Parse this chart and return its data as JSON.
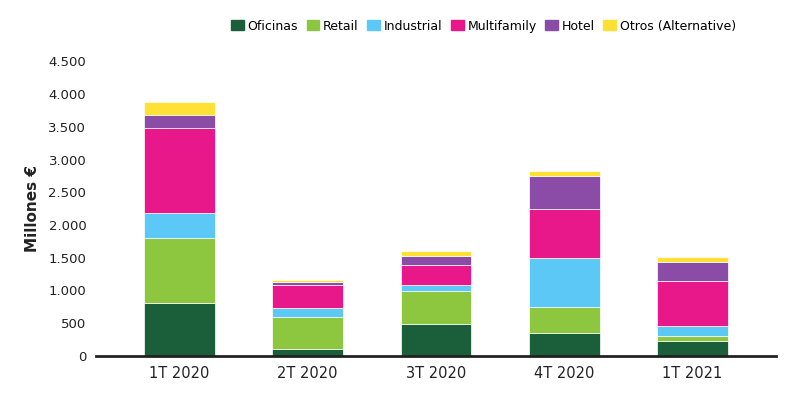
{
  "categories": [
    "1T 2020",
    "2T 2020",
    "3T 2020",
    "4T 2020",
    "1T 2021"
  ],
  "series": {
    "Oficinas": [
      800,
      100,
      480,
      350,
      230
    ],
    "Retail": [
      1000,
      490,
      510,
      400,
      70
    ],
    "Industrial": [
      380,
      140,
      100,
      750,
      150
    ],
    "Multifamily": [
      1300,
      350,
      300,
      750,
      700
    ],
    "Hotel": [
      200,
      50,
      140,
      500,
      280
    ],
    "Otros (Alternative)": [
      200,
      30,
      70,
      75,
      75
    ]
  },
  "colors": {
    "Oficinas": "#1a5e3a",
    "Retail": "#8dc63f",
    "Industrial": "#5bc8f5",
    "Multifamily": "#e8188a",
    "Hotel": "#8b4ca8",
    "Otros (Alternative)": "#ffe135"
  },
  "ylabel": "Millones €",
  "ylim": [
    0,
    4500
  ],
  "yticks": [
    0,
    500,
    1000,
    1500,
    2000,
    2500,
    3000,
    3500,
    4000,
    4500
  ],
  "ytick_labels": [
    "0",
    "500",
    "1.000",
    "1.500",
    "2.000",
    "2.500",
    "3.000",
    "3.500",
    "4.000",
    "4.500"
  ],
  "background_color": "#ffffff",
  "bar_width": 0.55,
  "legend_order": [
    "Oficinas",
    "Retail",
    "Industrial",
    "Multifamily",
    "Hotel",
    "Otros (Alternative)"
  ]
}
